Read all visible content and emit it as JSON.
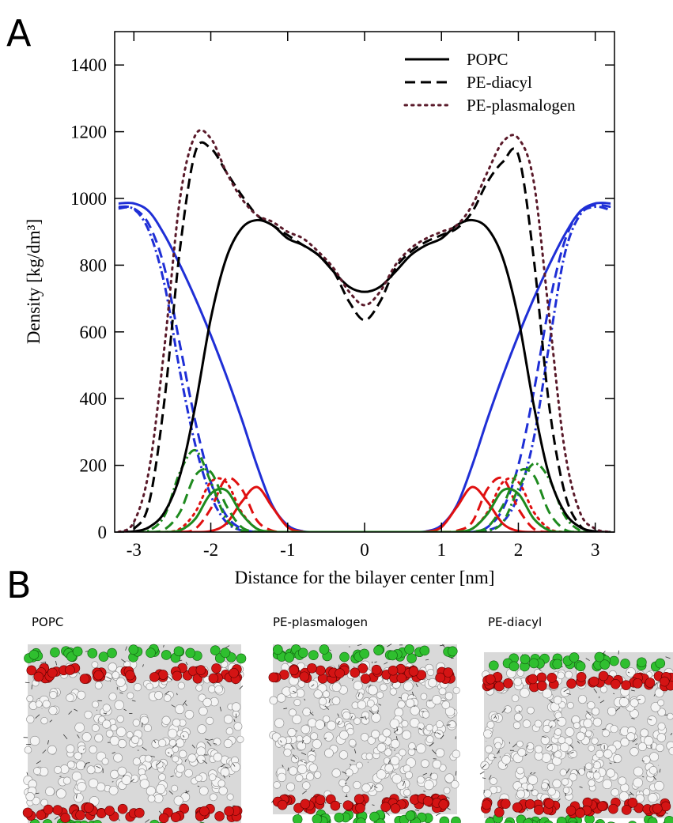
{
  "chart_data": {
    "type": "line",
    "x_label": "Distance for the bilayer center [nm]",
    "y_label": "Density [kg/dm³]",
    "xlim": [
      -3.25,
      3.25
    ],
    "xticks": [
      -3,
      -2,
      -1,
      0,
      1,
      2,
      3
    ],
    "ylim": [
      0,
      1500
    ],
    "yticks": [
      0,
      200,
      400,
      600,
      800,
      1000,
      1200,
      1400
    ],
    "legend": "upper right",
    "x": [
      -3.2,
      -3.0,
      -2.8,
      -2.6,
      -2.4,
      -2.2,
      -2.0,
      -1.8,
      -1.6,
      -1.4,
      -1.2,
      -1.0,
      -0.8,
      -0.6,
      -0.4,
      -0.2,
      0,
      0.2,
      0.4,
      0.6,
      0.8,
      1.0,
      1.2,
      1.4,
      1.6,
      1.8,
      2.0,
      2.2,
      2.4,
      2.6,
      2.8,
      3.0,
      3.2
    ],
    "series": [
      {
        "color": "#1f2fd6",
        "dash": "solid",
        "values": [
          985,
          985,
          960,
          890,
          800,
          700,
          590,
          470,
          340,
          200,
          80,
          20,
          2,
          0,
          0,
          0,
          0,
          0,
          0,
          0,
          2,
          20,
          80,
          200,
          340,
          470,
          590,
          700,
          800,
          890,
          960,
          985,
          985
        ]
      },
      {
        "color": "#1f2fd6",
        "dash": "dashed",
        "values": [
          975,
          970,
          920,
          790,
          560,
          330,
          150,
          50,
          10,
          0,
          0,
          0,
          0,
          0,
          0,
          0,
          0,
          0,
          0,
          0,
          0,
          0,
          0,
          0,
          15,
          70,
          200,
          420,
          680,
          870,
          960,
          980,
          975
        ]
      },
      {
        "color": "#1f2fd6",
        "dash": "dashdot",
        "values": [
          970,
          968,
          900,
          740,
          480,
          260,
          110,
          30,
          5,
          0,
          0,
          0,
          0,
          0,
          0,
          0,
          0,
          0,
          0,
          0,
          0,
          0,
          0,
          0,
          5,
          30,
          110,
          280,
          560,
          830,
          950,
          975,
          965
        ]
      },
      {
        "color": "#e01010",
        "dash": "solid",
        "values": [
          0,
          0,
          0,
          0,
          0,
          0,
          3,
          25,
          90,
          135,
          75,
          15,
          1,
          0,
          0,
          0,
          0,
          0,
          0,
          0,
          1,
          15,
          75,
          135,
          90,
          25,
          3,
          0,
          0,
          0,
          0,
          0,
          0
        ]
      },
      {
        "color": "#e01010",
        "dash": "dashed",
        "values": [
          0,
          0,
          0,
          0,
          0,
          10,
          70,
          160,
          130,
          35,
          4,
          0,
          0,
          0,
          0,
          0,
          0,
          0,
          0,
          0,
          0,
          0,
          4,
          30,
          130,
          160,
          70,
          10,
          0,
          0,
          0,
          0,
          0
        ]
      },
      {
        "color": "#e01010",
        "dash": "dotted",
        "values": [
          0,
          0,
          0,
          0,
          10,
          60,
          150,
          150,
          60,
          10,
          0,
          0,
          0,
          0,
          0,
          0,
          0,
          0,
          0,
          0,
          0,
          0,
          0,
          10,
          60,
          150,
          150,
          60,
          10,
          0,
          0,
          0,
          0
        ]
      },
      {
        "color": "#1e8a1e",
        "dash": "solid",
        "values": [
          0,
          0,
          0,
          0,
          5,
          40,
          115,
          125,
          55,
          10,
          1,
          0,
          0,
          0,
          0,
          0,
          0,
          0,
          0,
          0,
          0,
          0,
          1,
          10,
          55,
          125,
          115,
          40,
          5,
          0,
          0,
          0,
          0
        ]
      },
      {
        "color": "#1e8a1e",
        "dash": "dashed",
        "values": [
          0,
          0,
          0,
          8,
          60,
          170,
          180,
          80,
          15,
          1,
          0,
          0,
          0,
          0,
          0,
          0,
          0,
          0,
          0,
          0,
          0,
          0,
          0,
          1,
          15,
          80,
          180,
          170,
          60,
          8,
          0,
          0,
          0
        ]
      },
      {
        "color": "#1e8a1e",
        "dash": "dashdot",
        "values": [
          0,
          0,
          5,
          50,
          180,
          245,
          150,
          40,
          5,
          0,
          0,
          0,
          0,
          0,
          0,
          0,
          0,
          0,
          0,
          0,
          0,
          0,
          0,
          0,
          3,
          30,
          130,
          205,
          160,
          50,
          5,
          0,
          0
        ]
      },
      {
        "name": "POPC",
        "color": "#000000",
        "dash": "solid",
        "values": [
          0,
          2,
          15,
          60,
          170,
          380,
          640,
          820,
          910,
          935,
          920,
          880,
          860,
          830,
          780,
          735,
          720,
          735,
          780,
          830,
          860,
          880,
          920,
          935,
          910,
          820,
          640,
          380,
          170,
          60,
          15,
          2,
          0
        ]
      },
      {
        "name": "PE-diacyl",
        "color": "#000000",
        "dash": "dashed",
        "values": [
          0,
          10,
          90,
          400,
          850,
          1140,
          1150,
          1080,
          1010,
          950,
          920,
          890,
          860,
          830,
          780,
          690,
          635,
          690,
          790,
          840,
          870,
          890,
          910,
          960,
          1050,
          1110,
          1130,
          820,
          380,
          120,
          20,
          2,
          0
        ]
      },
      {
        "name": "PE-plasmalogen",
        "color": "#5a1a2a",
        "dash": "dotted",
        "values": [
          0,
          30,
          190,
          560,
          1000,
          1190,
          1180,
          1080,
          1000,
          950,
          930,
          900,
          880,
          840,
          790,
          720,
          680,
          720,
          800,
          850,
          880,
          900,
          920,
          980,
          1080,
          1170,
          1180,
          1050,
          650,
          250,
          60,
          10,
          0
        ]
      }
    ]
  },
  "panel_labels": [
    "A",
    "B"
  ],
  "snapshots": [
    "POPC",
    "PE-plasmalogen",
    "PE-diacyl"
  ]
}
